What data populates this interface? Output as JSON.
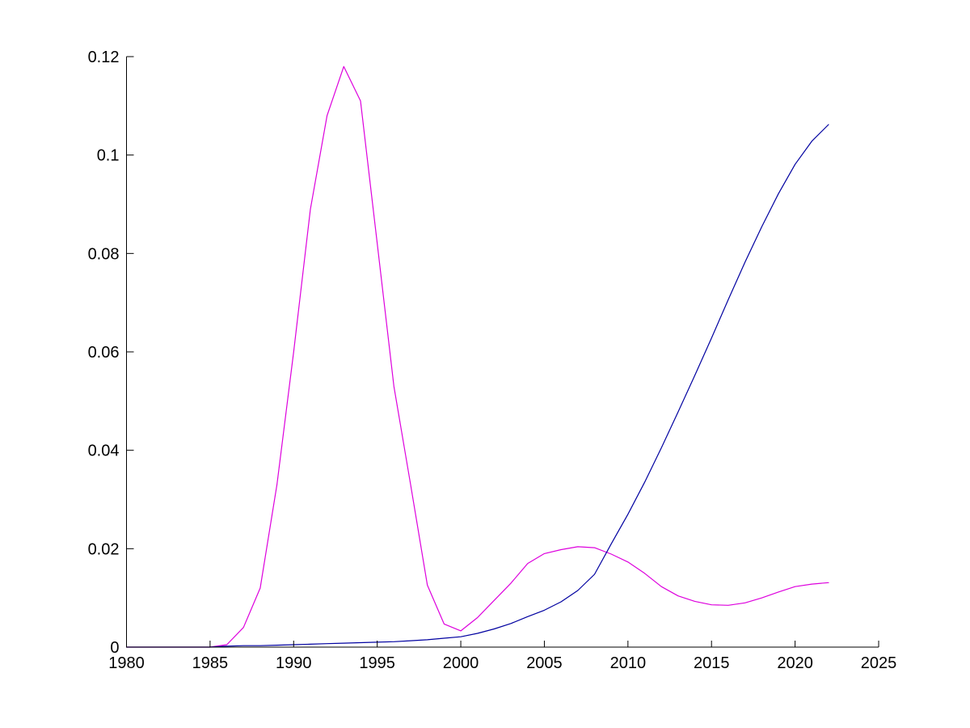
{
  "figure": {
    "background": "#FFFFFF"
  },
  "chart_data": {
    "type": "line",
    "title": "",
    "xlabel": "",
    "ylabel": "",
    "xlim": [
      1980,
      2025
    ],
    "ylim": [
      0,
      0.12
    ],
    "grid": false,
    "legend_position": "none",
    "axis_color": "#000000",
    "x": [
      1980,
      1981,
      1982,
      1983,
      1984,
      1985,
      1986,
      1987,
      1988,
      1989,
      1990,
      1991,
      1992,
      1993,
      1994,
      1995,
      1996,
      1997,
      1998,
      1999,
      2000,
      2001,
      2002,
      2003,
      2004,
      2005,
      2006,
      2007,
      2008,
      2009,
      2010,
      2011,
      2012,
      2013,
      2014,
      2015,
      2016,
      2017,
      2018,
      2019,
      2020,
      2021,
      2022
    ],
    "series": [
      {
        "name": "magenta-series",
        "color": "#DD00DD",
        "values": [
          0,
          0,
          0,
          0,
          0,
          0,
          0.0005,
          0.004,
          0.012,
          0.033,
          0.06,
          0.089,
          0.108,
          0.118,
          0.111,
          0.082,
          0.053,
          0.033,
          0.0126,
          0.0047,
          0.0033,
          0.006,
          0.0095,
          0.013,
          0.017,
          0.019,
          0.0198,
          0.0204,
          0.0202,
          0.0189,
          0.0173,
          0.015,
          0.0123,
          0.0104,
          0.0093,
          0.0086,
          0.0085,
          0.009,
          0.01,
          0.0112,
          0.0123,
          0.0128,
          0.0131
        ]
      },
      {
        "name": "blue-series",
        "color": "#0000A0",
        "values": [
          0,
          0,
          0,
          0,
          0,
          0,
          0.0002,
          0.0003,
          0.0003,
          0.0004,
          0.0005,
          0.0006,
          0.0007,
          0.0008,
          0.0009,
          0.001,
          0.0011,
          0.0013,
          0.0015,
          0.0018,
          0.0021,
          0.0028,
          0.0037,
          0.0048,
          0.0062,
          0.0075,
          0.0092,
          0.0115,
          0.0148,
          0.021,
          0.027,
          0.0335,
          0.0405,
          0.0478,
          0.0552,
          0.0628,
          0.0706,
          0.0782,
          0.0854,
          0.0921,
          0.0981,
          0.1028,
          0.1062
        ]
      }
    ],
    "x_ticks": [
      {
        "value": 1980,
        "label": "1980"
      },
      {
        "value": 1985,
        "label": "1985"
      },
      {
        "value": 1990,
        "label": "1990"
      },
      {
        "value": 1995,
        "label": "1995"
      },
      {
        "value": 2000,
        "label": "2000"
      },
      {
        "value": 2005,
        "label": "2005"
      },
      {
        "value": 2010,
        "label": "2010"
      },
      {
        "value": 2015,
        "label": "2015"
      },
      {
        "value": 2020,
        "label": "2020"
      },
      {
        "value": 2025,
        "label": "2025"
      }
    ],
    "y_ticks": [
      {
        "value": 0,
        "label": "0"
      },
      {
        "value": 0.02,
        "label": "0.02"
      },
      {
        "value": 0.04,
        "label": "0.04"
      },
      {
        "value": 0.06,
        "label": "0.06"
      },
      {
        "value": 0.08,
        "label": "0.08"
      },
      {
        "value": 0.1,
        "label": "0.1"
      },
      {
        "value": 0.12,
        "label": "0.12"
      }
    ]
  }
}
